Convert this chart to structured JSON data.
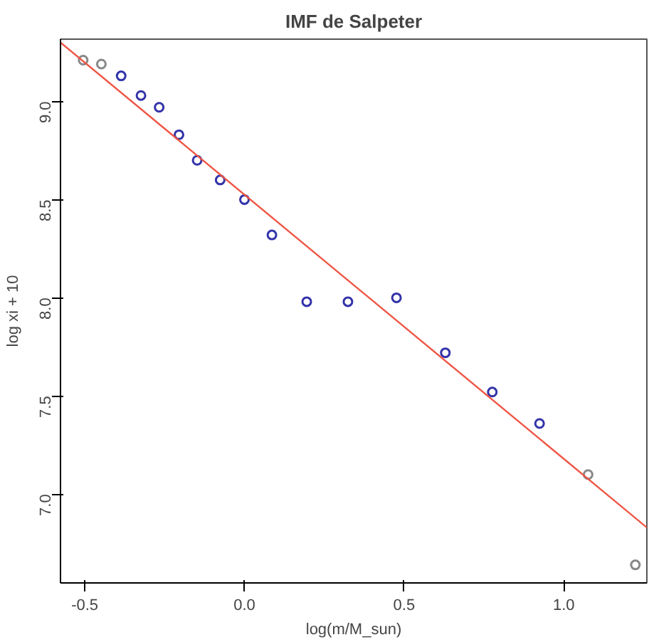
{
  "chart_data": {
    "type": "scatter",
    "title": "IMF de Salpeter",
    "xlabel": "log(m/M_sun)",
    "ylabel": "log xi + 10",
    "marker": "circle",
    "grid": false,
    "xlim": [
      -0.576,
      1.26
    ],
    "ylim": [
      6.548,
      9.317
    ],
    "xticks": [
      {
        "value": -0.5,
        "label": "-0.5"
      },
      {
        "value": 0.0,
        "label": "0.0"
      },
      {
        "value": 0.5,
        "label": "0.5"
      },
      {
        "value": 1.0,
        "label": "1.0"
      }
    ],
    "yticks": [
      {
        "value": 7.0,
        "label": "7.0"
      },
      {
        "value": 7.5,
        "label": "7.5"
      },
      {
        "value": 8.0,
        "label": "8.0"
      },
      {
        "value": 8.5,
        "label": "8.5"
      },
      {
        "value": 9.0,
        "label": "9.0"
      }
    ],
    "series": [
      {
        "color": "#888888",
        "x": [
          -0.505,
          -0.448,
          1.076,
          1.224
        ],
        "values": [
          9.21,
          9.19,
          7.1,
          6.64
        ]
      },
      {
        "color": "#3333aa",
        "x": [
          -0.386,
          -0.324,
          -0.267,
          -0.205,
          -0.148,
          -0.076,
          0.0,
          0.086,
          0.195,
          0.324,
          0.476,
          0.629,
          0.776,
          0.924
        ],
        "values": [
          9.13,
          9.03,
          8.97,
          8.83,
          8.7,
          8.6,
          8.5,
          8.32,
          7.98,
          7.98,
          8.0,
          7.72,
          7.52,
          7.36
        ]
      },
      {
        "type": "line",
        "marker": "none",
        "color": "#ee5544",
        "x": [
          -0.576,
          1.26
        ],
        "values": [
          9.3,
          6.83
        ]
      }
    ]
  }
}
